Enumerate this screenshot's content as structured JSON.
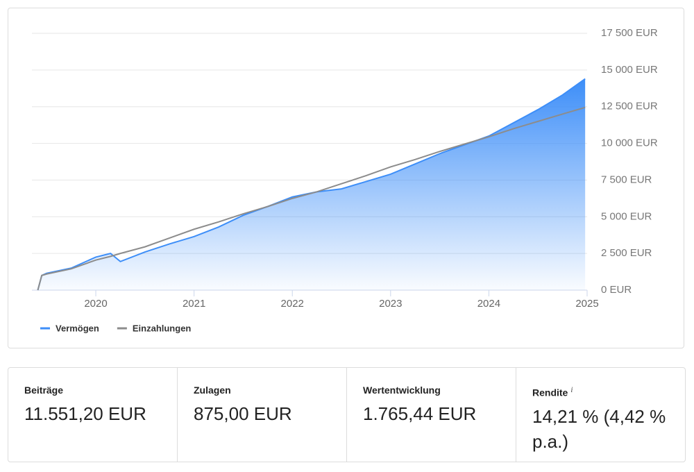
{
  "chart_data": {
    "type": "area-line",
    "x": [
      2019.41,
      2019.45,
      2019.5,
      2019.75,
      2020.0,
      2020.15,
      2020.25,
      2020.5,
      2020.75,
      2021.0,
      2021.25,
      2021.5,
      2021.75,
      2022.0,
      2022.25,
      2022.5,
      2022.75,
      2023.0,
      2023.25,
      2023.5,
      2023.75,
      2024.0,
      2024.25,
      2024.5,
      2024.75,
      2024.98
    ],
    "series": [
      {
        "name": "Vermögen",
        "color": "#3d8ef8",
        "values": [
          0,
          1000,
          1150,
          1500,
          2250,
          2500,
          1950,
          2600,
          3150,
          3650,
          4300,
          5100,
          5700,
          6350,
          6700,
          6900,
          7400,
          7900,
          8600,
          9300,
          9900,
          10500,
          11400,
          12300,
          13300,
          14400
        ]
      },
      {
        "name": "Einzahlungen",
        "color": "#8c8c8c",
        "values": [
          0,
          1000,
          1100,
          1450,
          2050,
          2300,
          2500,
          2950,
          3550,
          4150,
          4650,
          5200,
          5700,
          6250,
          6700,
          7250,
          7800,
          8400,
          8900,
          9450,
          9950,
          10450,
          11000,
          11500,
          12000,
          12450
        ]
      }
    ],
    "xlim": [
      2019.35,
      2025
    ],
    "xticks": [
      2020,
      2021,
      2022,
      2023,
      2024,
      2025
    ],
    "ylim": [
      0,
      17500
    ],
    "yticks": [
      {
        "value": 0,
        "label": "0 EUR"
      },
      {
        "value": 2500,
        "label": "2 500 EUR"
      },
      {
        "value": 5000,
        "label": "5 000 EUR"
      },
      {
        "value": 7500,
        "label": "7 500 EUR"
      },
      {
        "value": 10000,
        "label": "10 000 EUR"
      },
      {
        "value": 12500,
        "label": "12 500 EUR"
      },
      {
        "value": 15000,
        "label": "15 000 EUR"
      },
      {
        "value": 17500,
        "label": "17 500 EUR"
      }
    ],
    "grid": true,
    "legend": "bottom-left"
  },
  "summary": [
    {
      "label": "Beiträge",
      "value": "11.551,20 EUR"
    },
    {
      "label": "Zulagen",
      "value": "875,00 EUR"
    },
    {
      "label": "Wertentwicklung",
      "value": "1.765,44 EUR"
    },
    {
      "label": "Rendite",
      "info": "i",
      "value": "14,21 % (4,42 % p.a.)"
    }
  ]
}
